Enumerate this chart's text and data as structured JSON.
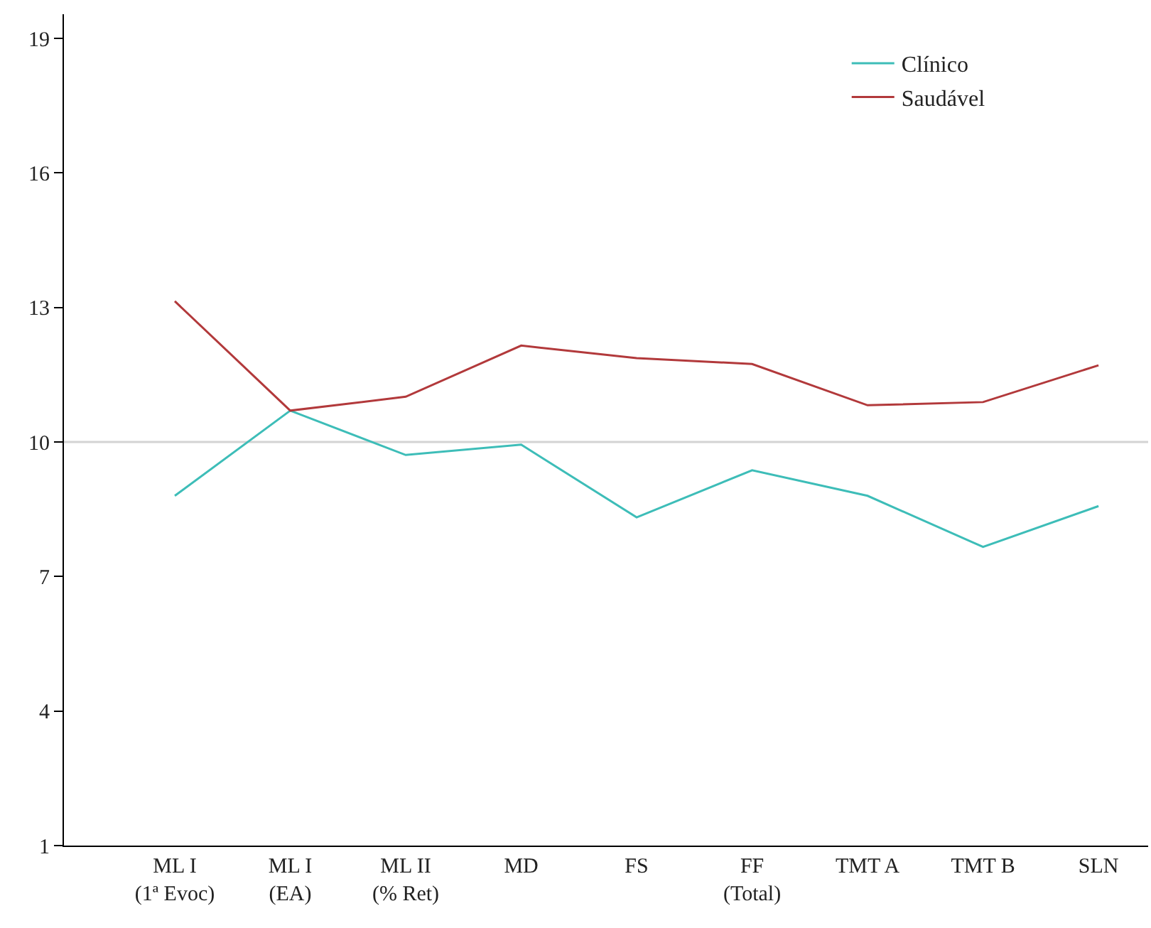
{
  "chart_data": {
    "type": "line",
    "categories": [
      "ML I\n(1ª Evoc)",
      "ML I\n(EA)",
      "ML II\n(% Ret)",
      "MD",
      "FS",
      "FF\n(Total)",
      "TMT A",
      "TMT B",
      "SLN"
    ],
    "series": [
      {
        "name": "Clínico",
        "color": "#3dbdb8",
        "values": [
          8.8,
          10.7,
          9.71,
          9.94,
          8.32,
          9.37,
          8.8,
          7.66,
          8.57
        ]
      },
      {
        "name": "Saudável",
        "color": "#b2393b",
        "values": [
          13.14,
          10.7,
          11.01,
          12.15,
          11.87,
          11.74,
          10.82,
          10.89,
          11.71
        ]
      }
    ],
    "ylim": [
      1,
      19.54
    ],
    "yticks": [
      1,
      4,
      7,
      10,
      13,
      16,
      19
    ],
    "ref_lines": [
      {
        "axis": "y",
        "value": 10,
        "color": "#d3d3d3"
      }
    ],
    "grid": false,
    "legend": "top right",
    "marker": "none",
    "line_style": "solid"
  }
}
